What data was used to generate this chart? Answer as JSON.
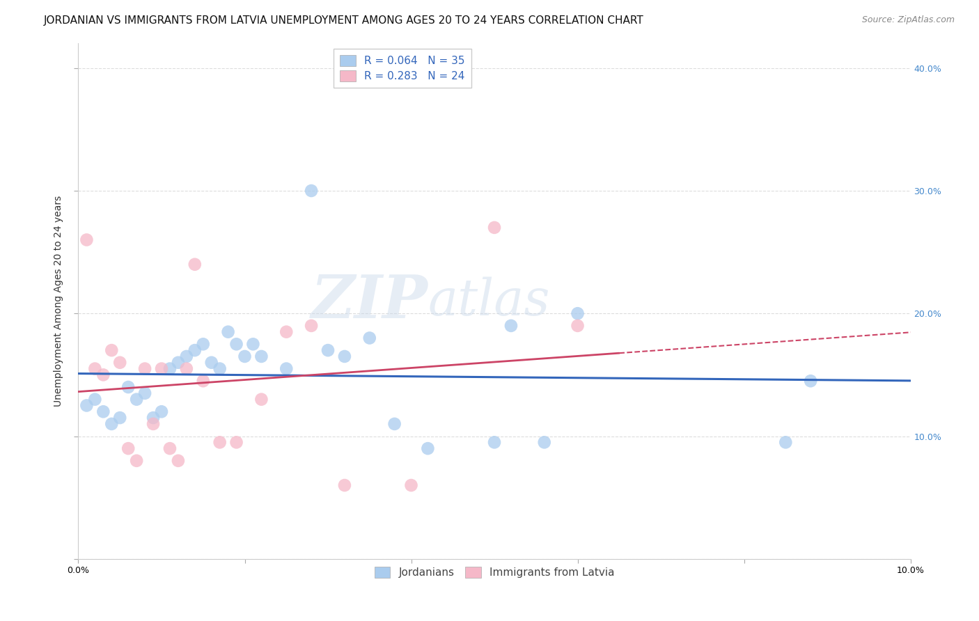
{
  "title": "JORDANIAN VS IMMIGRANTS FROM LATVIA UNEMPLOYMENT AMONG AGES 20 TO 24 YEARS CORRELATION CHART",
  "source": "Source: ZipAtlas.com",
  "ylabel": "Unemployment Among Ages 20 to 24 years",
  "xlim": [
    0.0,
    0.1
  ],
  "ylim": [
    0.0,
    0.42
  ],
  "yticks": [
    0.0,
    0.1,
    0.2,
    0.3,
    0.4
  ],
  "ytick_labels_right": [
    "",
    "10.0%",
    "20.0%",
    "30.0%",
    "40.0%"
  ],
  "xticks": [
    0.0,
    0.02,
    0.04,
    0.06,
    0.08,
    0.1
  ],
  "xtick_labels": [
    "0.0%",
    "",
    "",
    "",
    "",
    "10.0%"
  ],
  "blue_R": 0.064,
  "blue_N": 35,
  "pink_R": 0.283,
  "pink_N": 24,
  "blue_color": "#aaccee",
  "pink_color": "#f5b8c8",
  "blue_line_color": "#3366bb",
  "pink_line_color": "#cc4466",
  "legend_label_blue": "Jordanians",
  "legend_label_pink": "Immigrants from Latvia",
  "blue_x": [
    0.001,
    0.002,
    0.003,
    0.004,
    0.005,
    0.006,
    0.007,
    0.008,
    0.009,
    0.01,
    0.011,
    0.012,
    0.013,
    0.014,
    0.015,
    0.016,
    0.017,
    0.018,
    0.019,
    0.02,
    0.021,
    0.022,
    0.025,
    0.028,
    0.03,
    0.032,
    0.035,
    0.038,
    0.042,
    0.05,
    0.052,
    0.056,
    0.06,
    0.085,
    0.088
  ],
  "blue_y": [
    0.125,
    0.13,
    0.12,
    0.11,
    0.115,
    0.14,
    0.13,
    0.135,
    0.115,
    0.12,
    0.155,
    0.16,
    0.165,
    0.17,
    0.175,
    0.16,
    0.155,
    0.185,
    0.175,
    0.165,
    0.175,
    0.165,
    0.155,
    0.3,
    0.17,
    0.165,
    0.18,
    0.11,
    0.09,
    0.095,
    0.19,
    0.095,
    0.2,
    0.095,
    0.145
  ],
  "pink_x": [
    0.001,
    0.002,
    0.003,
    0.004,
    0.005,
    0.006,
    0.007,
    0.008,
    0.009,
    0.01,
    0.011,
    0.012,
    0.013,
    0.014,
    0.015,
    0.017,
    0.019,
    0.022,
    0.025,
    0.028,
    0.032,
    0.04,
    0.05,
    0.06
  ],
  "pink_y": [
    0.26,
    0.155,
    0.15,
    0.17,
    0.16,
    0.09,
    0.08,
    0.155,
    0.11,
    0.155,
    0.09,
    0.08,
    0.155,
    0.24,
    0.145,
    0.095,
    0.095,
    0.13,
    0.185,
    0.19,
    0.06,
    0.06,
    0.27,
    0.19
  ],
  "watermark_zip": "ZIP",
  "watermark_atlas": "atlas",
  "title_fontsize": 11,
  "source_fontsize": 9,
  "axis_label_fontsize": 10,
  "tick_fontsize": 9,
  "legend_fontsize": 11,
  "right_tick_color": "#4488cc",
  "grid_color": "#dddddd"
}
